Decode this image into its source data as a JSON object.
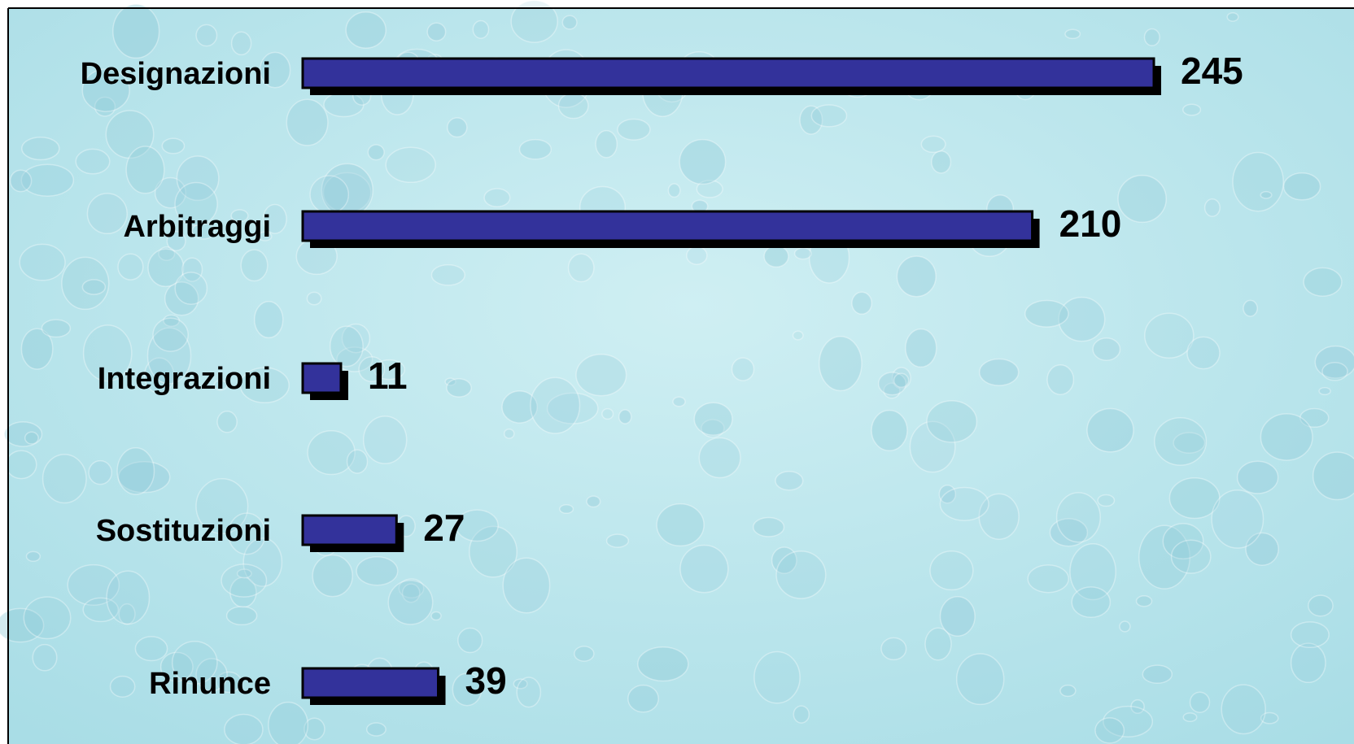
{
  "chart_data": {
    "type": "bar",
    "orientation": "horizontal",
    "categories": [
      "Designazioni",
      "Arbitraggi",
      "Integrazioni",
      "Sostituzioni",
      "Rinunce"
    ],
    "values": [
      245,
      210,
      11,
      27,
      39
    ],
    "title": "",
    "xlabel": "",
    "ylabel": "",
    "xlim": [
      0,
      245
    ],
    "grid": false,
    "legend": "none",
    "data_labels": true
  },
  "colors": {
    "bar_fill": "#33329b",
    "bar_shadow": "#000000",
    "label_text": "#000000",
    "background_light": "#cfeff3",
    "background_mid": "#a9dde6",
    "drop_tone": "#8fcad8",
    "border": "#000000"
  }
}
